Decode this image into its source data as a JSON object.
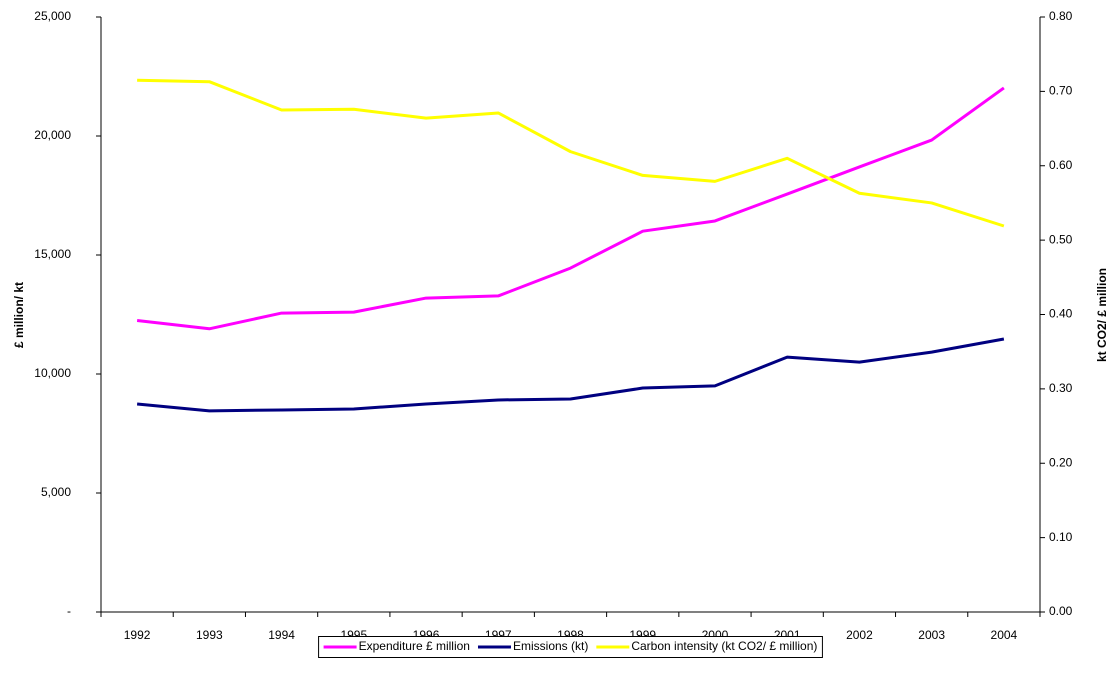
{
  "chart_data": {
    "type": "line",
    "categories": [
      "1992",
      "1993",
      "1994",
      "1995",
      "1996",
      "1997",
      "1998",
      "1999",
      "2000",
      "2001",
      "2002",
      "2003",
      "2004"
    ],
    "series": [
      {
        "name": "Expenditure £ million",
        "color": "#ff00ff",
        "values": [
          12250,
          11900,
          12560,
          12600,
          13190,
          13280,
          14450,
          16000,
          16430,
          17560,
          18700,
          19830,
          22020
        ]
      },
      {
        "name": "Emissions (kt)",
        "color": "#000080",
        "values": [
          8740,
          8450,
          8490,
          8530,
          8740,
          8910,
          8950,
          9410,
          9500,
          10710,
          10500,
          10920,
          11470
        ]
      },
      {
        "name": "Carbon intensity (kt CO2/ £ million)",
        "color": "#ffff00",
        "axis": "y2",
        "values": [
          0.715,
          0.713,
          0.675,
          0.676,
          0.664,
          0.671,
          0.619,
          0.587,
          0.579,
          0.61,
          0.563,
          0.55,
          0.519
        ]
      }
    ],
    "ylabel": "£ million/ kt",
    "y2label": "kt CO2/ £ million",
    "ylim": [
      0,
      25000
    ],
    "yticks": [
      {
        "value": 0,
        "label": "-"
      },
      {
        "value": 5000,
        "label": "5,000"
      },
      {
        "value": 10000,
        "label": "10,000"
      },
      {
        "value": 15000,
        "label": "15,000"
      },
      {
        "value": 20000,
        "label": "20,000"
      },
      {
        "value": 25000,
        "label": "25,000"
      }
    ],
    "y2lim": [
      0,
      0.8
    ],
    "y2ticks": [
      {
        "value": 0,
        "label": "0.00"
      },
      {
        "value": 0.1,
        "label": "0.10"
      },
      {
        "value": 0.2,
        "label": "0.20"
      },
      {
        "value": 0.3,
        "label": "0.30"
      },
      {
        "value": 0.4,
        "label": "0.40"
      },
      {
        "value": 0.5,
        "label": "0.50"
      },
      {
        "value": 0.6,
        "label": "0.60"
      },
      {
        "value": 0.7,
        "label": "0.70"
      },
      {
        "value": 0.8,
        "label": "0.80"
      }
    ],
    "grid": false,
    "legend": "bottom"
  }
}
